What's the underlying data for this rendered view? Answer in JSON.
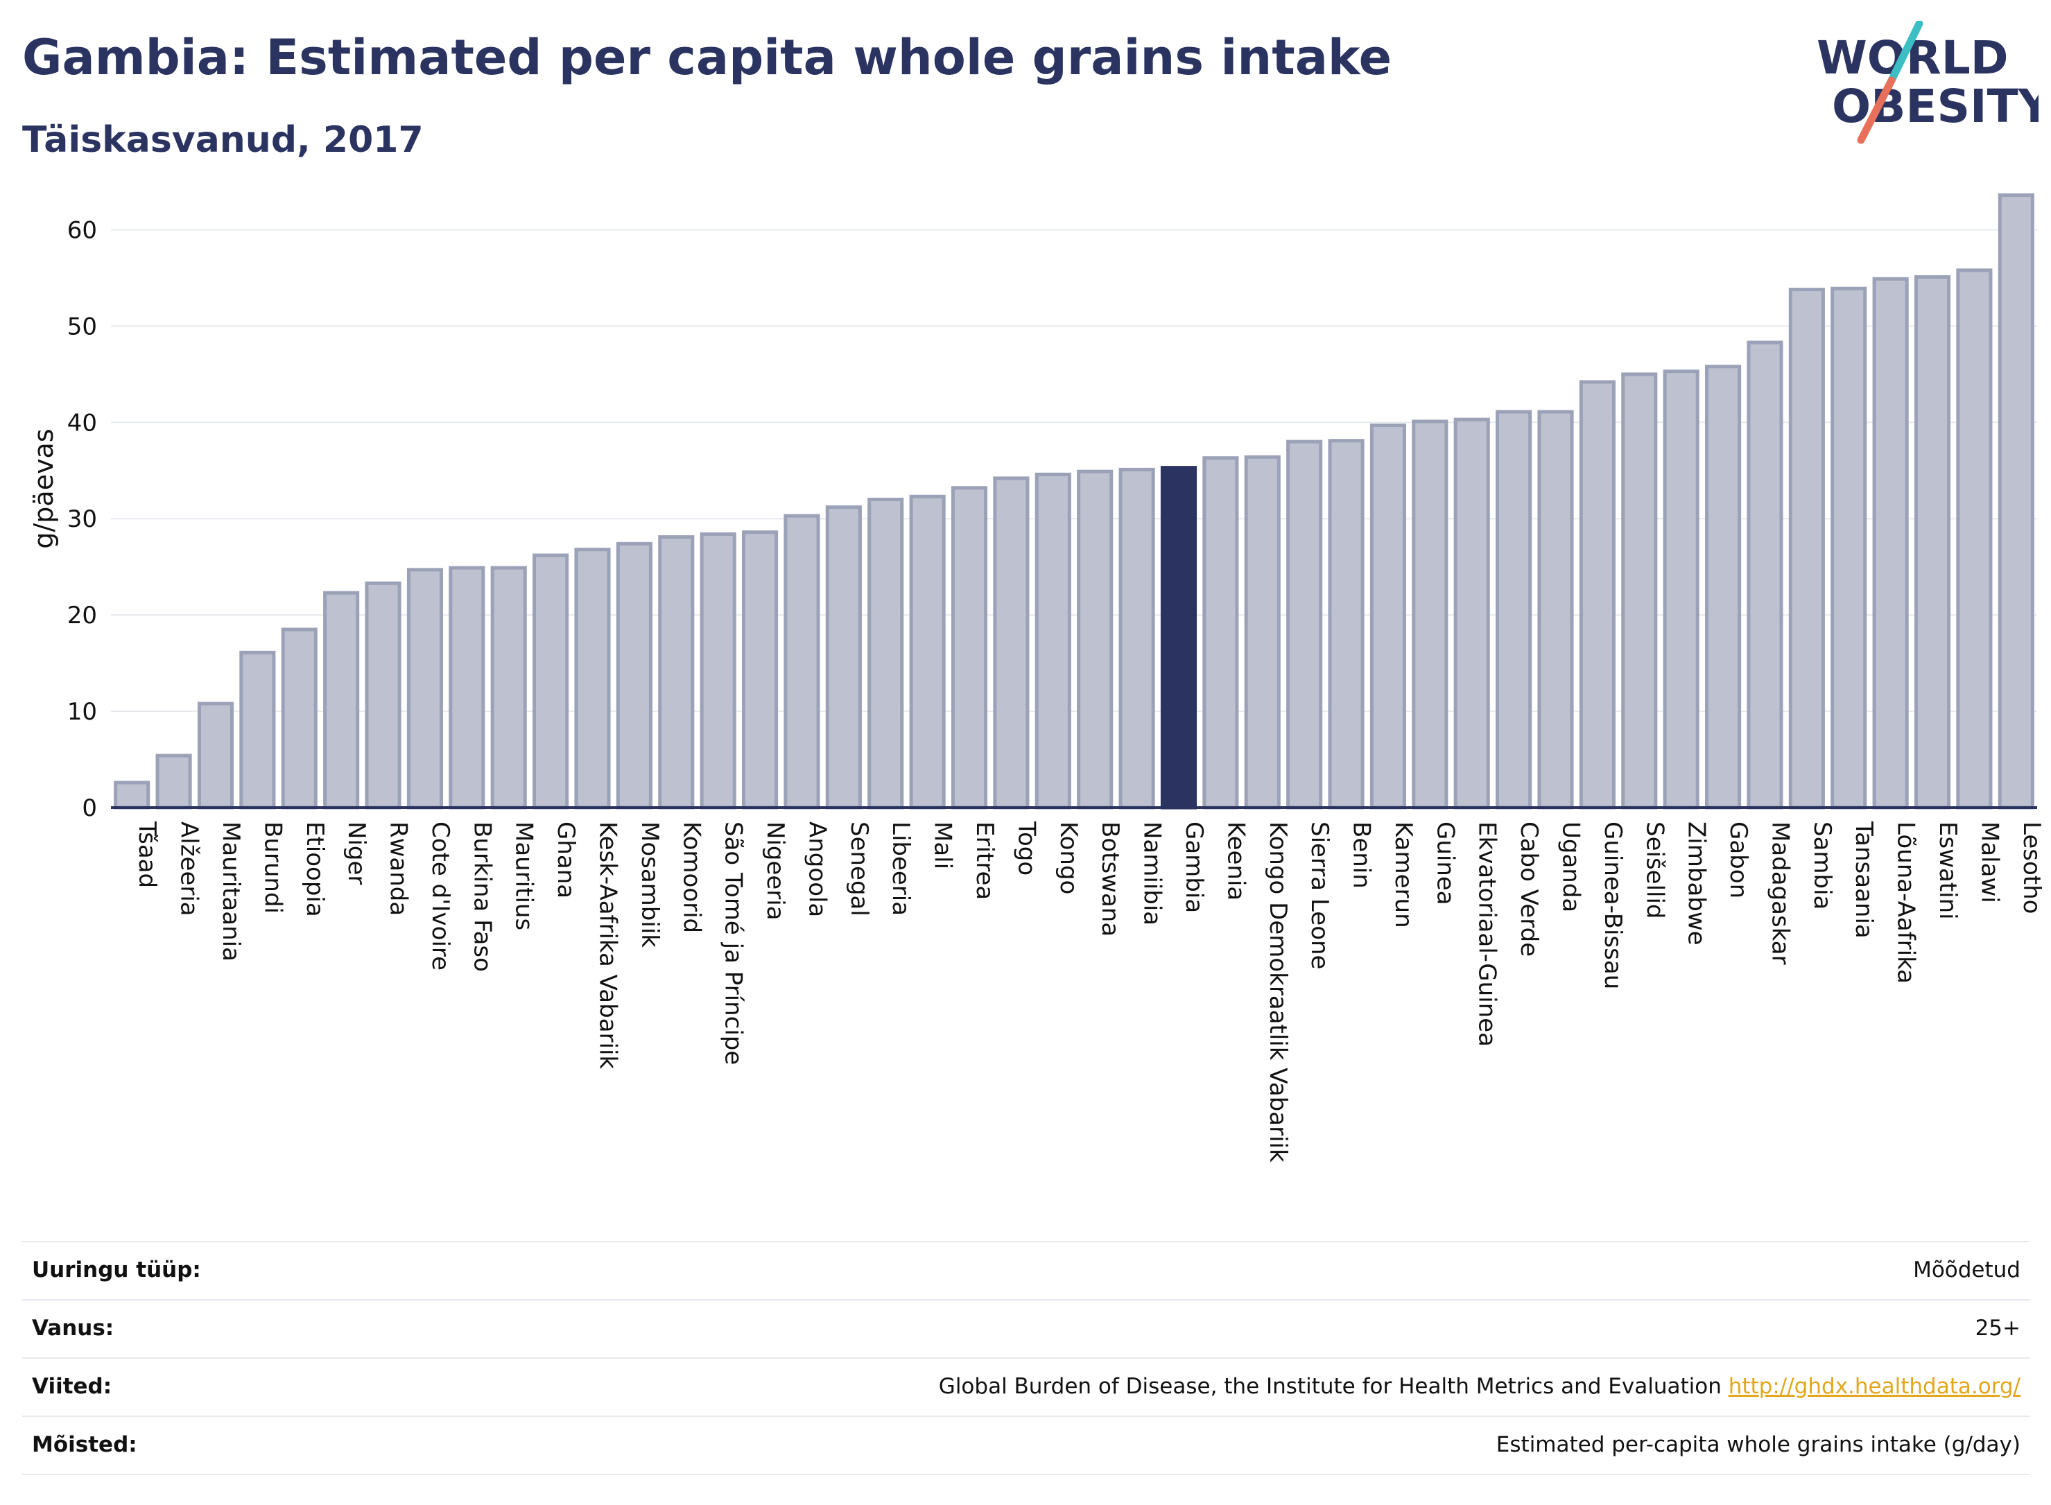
{
  "header": {
    "title": "Gambia: Estimated per capita whole grains intake",
    "subtitle": "Täiskasvanud, 2017"
  },
  "logo": {
    "line1": "WORLD",
    "line2": "OBESITY",
    "accent_teal": "#3cbfc4",
    "accent_coral": "#e8705a",
    "text_color": "#2b3461"
  },
  "colors": {
    "bar": "#bdc1d0",
    "bar_stroke": "#9ba1b7",
    "highlight": "#2b3461",
    "grid": "#e6e9ee",
    "axis": "#2b3461"
  },
  "chart_data": {
    "type": "bar",
    "ylabel": "g/päevas",
    "xlabel": "",
    "ylim": [
      0,
      65
    ],
    "yticks": [
      0,
      10,
      20,
      30,
      40,
      50,
      60
    ],
    "grid": true,
    "highlight": "Gambia",
    "categories": [
      "Tšaad",
      "Alžeeria",
      "Mauritaania",
      "Burundi",
      "Etioopia",
      "Niger",
      "Rwanda",
      "Cote d'Ivoire",
      "Burkina Faso",
      "Mauritius",
      "Ghana",
      "Kesk-Aafrika Vabariik",
      "Mosambiik",
      "Komoorid",
      "São Tomé ja Príncipe",
      "Nigeeria",
      "Angoola",
      "Senegal",
      "Libeeria",
      "Mali",
      "Eritrea",
      "Togo",
      "Kongo",
      "Botswana",
      "Namiibia",
      "Gambia",
      "Keenia",
      "Kongo Demokraatlik Vabariik",
      "Sierra Leone",
      "Benin",
      "Kamerun",
      "Guinea",
      "Ekvatoriaal-Guinea",
      "Cabo Verde",
      "Uganda",
      "Guinea-Bissau",
      "Seišellid",
      "Zimbabwe",
      "Gabon",
      "Madagaskar",
      "Sambia",
      "Tansaania",
      "Lõuna-Aafrika",
      "Eswatini",
      "Malawi",
      "Lesotho"
    ],
    "values": [
      2.6,
      5.4,
      10.8,
      16.1,
      18.5,
      22.3,
      23.3,
      24.7,
      24.9,
      24.9,
      26.2,
      26.8,
      27.4,
      28.1,
      28.4,
      28.6,
      30.3,
      31.2,
      32.0,
      32.3,
      33.2,
      34.2,
      34.6,
      34.9,
      35.1,
      35.3,
      36.3,
      36.4,
      38.0,
      38.1,
      39.7,
      40.1,
      40.3,
      41.1,
      41.1,
      44.2,
      45.0,
      45.3,
      45.8,
      48.3,
      53.8,
      53.9,
      54.9,
      55.1,
      55.8,
      63.6
    ]
  },
  "info": [
    {
      "label": "Uuringu tüüp:",
      "value": "Mõõdetud"
    },
    {
      "label": "Vanus:",
      "value": "25+"
    },
    {
      "label": "Viited:",
      "value": "Global Burden of Disease, the Institute for Health Metrics and Evaluation",
      "link": "http://ghdx.healthdata.org/"
    },
    {
      "label": "Mõisted:",
      "value": "Estimated per-capita whole grains intake (g/day)"
    }
  ]
}
